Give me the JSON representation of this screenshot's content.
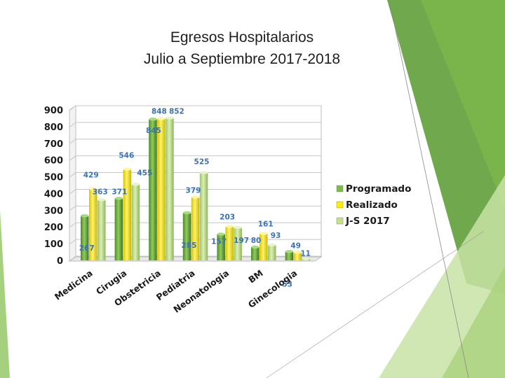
{
  "slide": {
    "title_line1": "Egresos Hospitalarios",
    "title_line2": "Julio a Septiembre 2017-2018"
  },
  "colors": {
    "programado": "#7cba4a",
    "realizado": "#ffee00",
    "js2017": "#c4e089",
    "decor_dark": "#5f9e3a",
    "decor_light": "#b5d98a"
  },
  "chart_data": {
    "type": "bar",
    "title": "",
    "xlabel": "",
    "ylabel": "",
    "ylim": [
      0,
      900
    ],
    "yticks": [
      "0",
      "100",
      "200",
      "300",
      "400",
      "500",
      "600",
      "700",
      "800",
      "900"
    ],
    "grid": true,
    "style": "3d-cylinder",
    "legend_position": "right",
    "categories": [
      "Medicina",
      "Cirugia",
      "Obstetricia",
      "Pediatria",
      "Neonatologia",
      "BM",
      "Ginecologia"
    ],
    "series": [
      {
        "name": "Programado",
        "color": "#7cba4a",
        "values": [
          267,
          371,
          845,
          285,
          157,
          80,
          53
        ]
      },
      {
        "name": "Realizado",
        "color": "#ffee00",
        "values": [
          429,
          546,
          848,
          379,
          203,
          161,
          49
        ]
      },
      {
        "name": "J-S 2017",
        "color": "#c4e089",
        "values": [
          363,
          455,
          852,
          525,
          197,
          93,
          11
        ]
      }
    ]
  }
}
